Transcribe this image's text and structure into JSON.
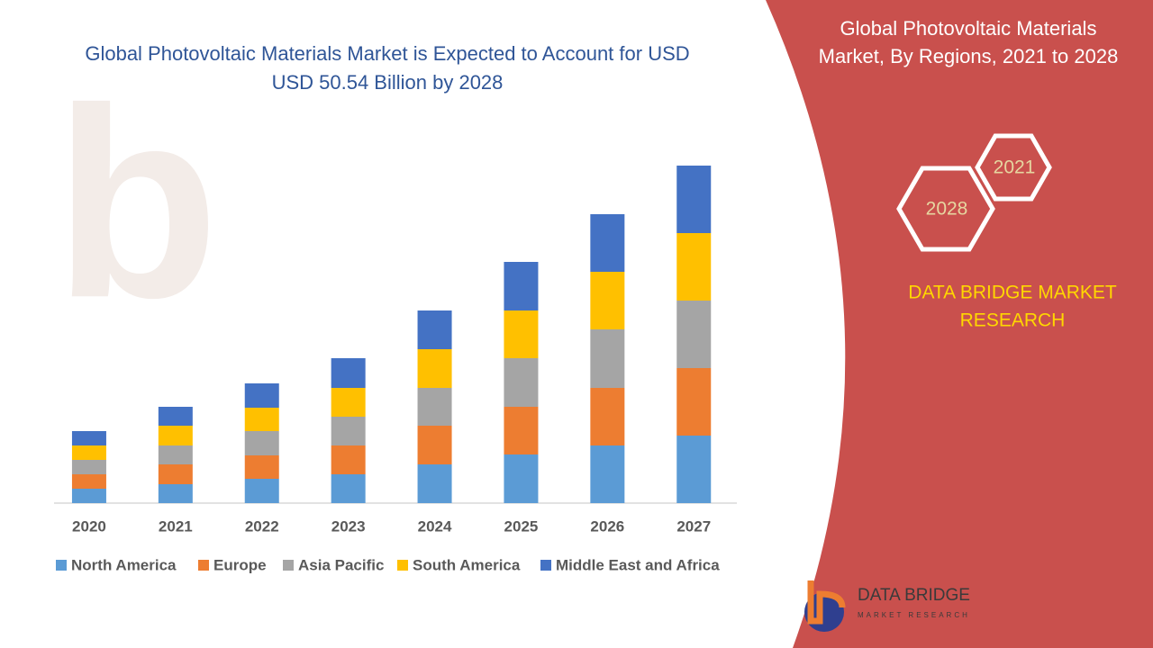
{
  "chart_data": {
    "type": "stacked-bar",
    "title": "Global Photovoltaic Materials Market is Expected to Account for USD USD 50.54 Billion by 2028",
    "categories": [
      "2020",
      "2021",
      "2022",
      "2023",
      "2024",
      "2025",
      "2026",
      "2027"
    ],
    "series": [
      {
        "name": "North America",
        "color": "#5b9bd5",
        "values": [
          16,
          21,
          27,
          32,
          43,
          54,
          64,
          75
        ]
      },
      {
        "name": "Europe",
        "color": "#ed7d31",
        "values": [
          16,
          22,
          26,
          32,
          43,
          53,
          64,
          75
        ]
      },
      {
        "name": "Asia Pacific",
        "color": "#a5a5a5",
        "values": [
          16,
          21,
          27,
          32,
          42,
          54,
          65,
          75
        ]
      },
      {
        "name": "South America",
        "color": "#ffc000",
        "values": [
          16,
          22,
          26,
          32,
          43,
          53,
          64,
          75
        ]
      },
      {
        "name": "Middle East and Africa",
        "color": "#4472c4",
        "values": [
          16,
          21,
          27,
          33,
          43,
          54,
          64,
          75
        ]
      }
    ],
    "ylim": [
      0,
      400
    ]
  },
  "panel": {
    "title": "Global Photovoltaic Materials Market, By Regions, 2021 to 2028",
    "hex_start": "2021",
    "hex_end": "2028",
    "brand": "DATA BRIDGE MARKET RESEARCH",
    "logo_name": "DATA BRIDGE",
    "logo_tag": "MARKET RESEARCH"
  }
}
